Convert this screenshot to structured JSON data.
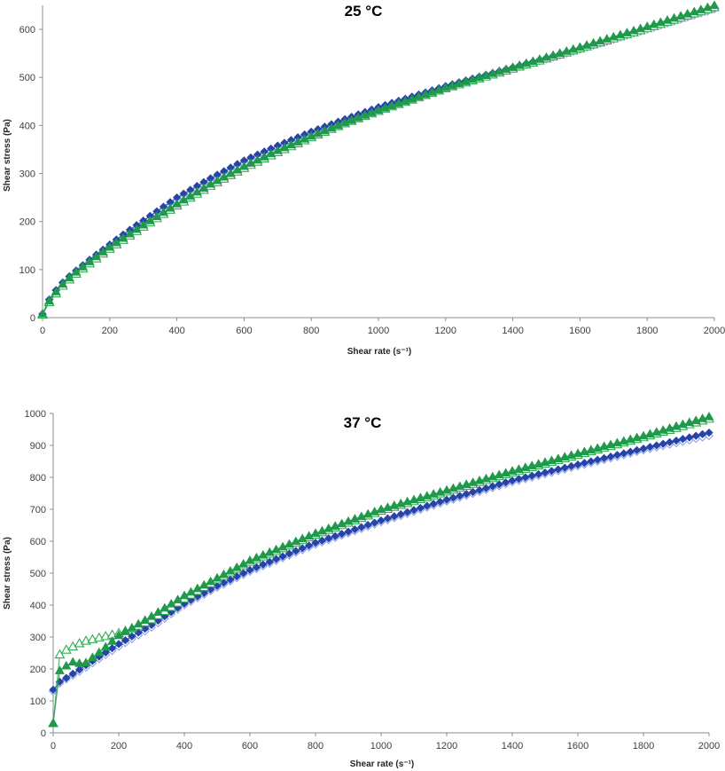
{
  "chart_data": [
    {
      "type": "scatter",
      "title": "25 °C",
      "xlabel": "Shear rate (s⁻¹)",
      "ylabel": "Shear stress (Pa)",
      "xlim": [
        0,
        2000
      ],
      "ylim": [
        0,
        650
      ],
      "xticks": [
        0,
        200,
        400,
        600,
        800,
        1000,
        1200,
        1400,
        1600,
        1800,
        2000
      ],
      "yticks": [
        0,
        100,
        200,
        300,
        400,
        500,
        600
      ],
      "grid": false,
      "legend": "none",
      "series": [
        {
          "marker": "diamond-open",
          "color": "#8fa0ea",
          "x": [
            0,
            20,
            40,
            60,
            80,
            100,
            150,
            200,
            250,
            300,
            400,
            500,
            600,
            700,
            800,
            900,
            1000,
            1200,
            1400,
            1600,
            1800,
            2000
          ],
          "y": [
            8,
            38,
            57,
            73,
            85,
            96,
            123,
            148,
            172,
            196,
            242,
            282,
            320,
            353,
            383,
            411,
            436,
            480,
            518,
            558,
            600,
            642
          ]
        },
        {
          "marker": "diamond",
          "color": "#2643a8",
          "x": [
            0,
            20,
            40,
            60,
            80,
            100,
            150,
            200,
            250,
            300,
            400,
            500,
            600,
            700,
            800,
            900,
            1000,
            1200,
            1400,
            1600,
            1800,
            2000
          ],
          "y": [
            7,
            37,
            57,
            73,
            86,
            98,
            126,
            152,
            178,
            202,
            250,
            290,
            327,
            358,
            387,
            413,
            438,
            482,
            521,
            561,
            603,
            645
          ]
        },
        {
          "marker": "triangle-open",
          "color": "#33aa55",
          "x": [
            0,
            20,
            40,
            60,
            80,
            100,
            150,
            200,
            250,
            300,
            400,
            500,
            600,
            700,
            800,
            900,
            1000,
            1200,
            1400,
            1600,
            1800,
            2000
          ],
          "y": [
            6,
            32,
            50,
            66,
            79,
            91,
            118,
            143,
            166,
            189,
            233,
            274,
            311,
            344,
            375,
            404,
            430,
            477,
            518,
            560,
            602,
            646
          ]
        },
        {
          "marker": "triangle",
          "color": "#1e9a4a",
          "x": [
            0,
            20,
            40,
            60,
            80,
            100,
            150,
            200,
            250,
            300,
            400,
            500,
            600,
            700,
            800,
            900,
            1000,
            1200,
            1400,
            1600,
            1800,
            2000
          ],
          "y": [
            8,
            35,
            54,
            70,
            83,
            95,
            122,
            147,
            170,
            193,
            237,
            278,
            315,
            348,
            378,
            406,
            432,
            479,
            521,
            563,
            606,
            650
          ]
        }
      ]
    },
    {
      "type": "scatter",
      "title": "37 °C",
      "xlabel": "Shear rate (s⁻¹)",
      "ylabel": "Shear stress (Pa)",
      "xlim": [
        0,
        2000
      ],
      "ylim": [
        0,
        1000
      ],
      "xticks": [
        0,
        200,
        400,
        600,
        800,
        1000,
        1200,
        1400,
        1600,
        1800,
        2000
      ],
      "yticks": [
        0,
        100,
        200,
        300,
        400,
        500,
        600,
        700,
        800,
        900,
        1000
      ],
      "grid": false,
      "legend": "none",
      "series": [
        {
          "marker": "diamond-open",
          "color": "#8fa0ea",
          "x": [
            0,
            20,
            40,
            60,
            80,
            100,
            150,
            200,
            250,
            300,
            400,
            500,
            600,
            800,
            1000,
            1200,
            1400,
            1600,
            1800,
            2000
          ],
          "y": [
            130,
            155,
            168,
            180,
            192,
            205,
            238,
            270,
            300,
            330,
            400,
            455,
            505,
            590,
            660,
            725,
            785,
            835,
            885,
            930
          ]
        },
        {
          "marker": "diamond",
          "color": "#2643a8",
          "x": [
            0,
            20,
            40,
            60,
            80,
            100,
            150,
            200,
            250,
            300,
            400,
            500,
            600,
            800,
            1000,
            1200,
            1400,
            1600,
            1800,
            2000
          ],
          "y": [
            135,
            160,
            172,
            185,
            198,
            212,
            245,
            278,
            308,
            338,
            405,
            460,
            510,
            595,
            665,
            730,
            790,
            840,
            890,
            940
          ]
        },
        {
          "marker": "triangle-open",
          "color": "#33aa55",
          "x": [
            0,
            20,
            40,
            60,
            80,
            100,
            150,
            200,
            250,
            300,
            400,
            500,
            600,
            800,
            1000,
            1200,
            1400,
            1600,
            1800,
            2000
          ],
          "y": [
            30,
            245,
            260,
            270,
            280,
            288,
            300,
            312,
            330,
            355,
            420,
            480,
            535,
            620,
            695,
            755,
            815,
            870,
            925,
            983
          ]
        },
        {
          "marker": "triangle",
          "color": "#1e9a4a",
          "x": [
            0,
            20,
            40,
            60,
            80,
            100,
            150,
            200,
            250,
            300,
            400,
            500,
            600,
            800,
            1000,
            1200,
            1400,
            1600,
            1800,
            2000
          ],
          "y": [
            30,
            195,
            210,
            222,
            218,
            220,
            260,
            305,
            335,
            365,
            430,
            485,
            540,
            625,
            700,
            760,
            820,
            875,
            930,
            990
          ]
        }
      ]
    }
  ]
}
